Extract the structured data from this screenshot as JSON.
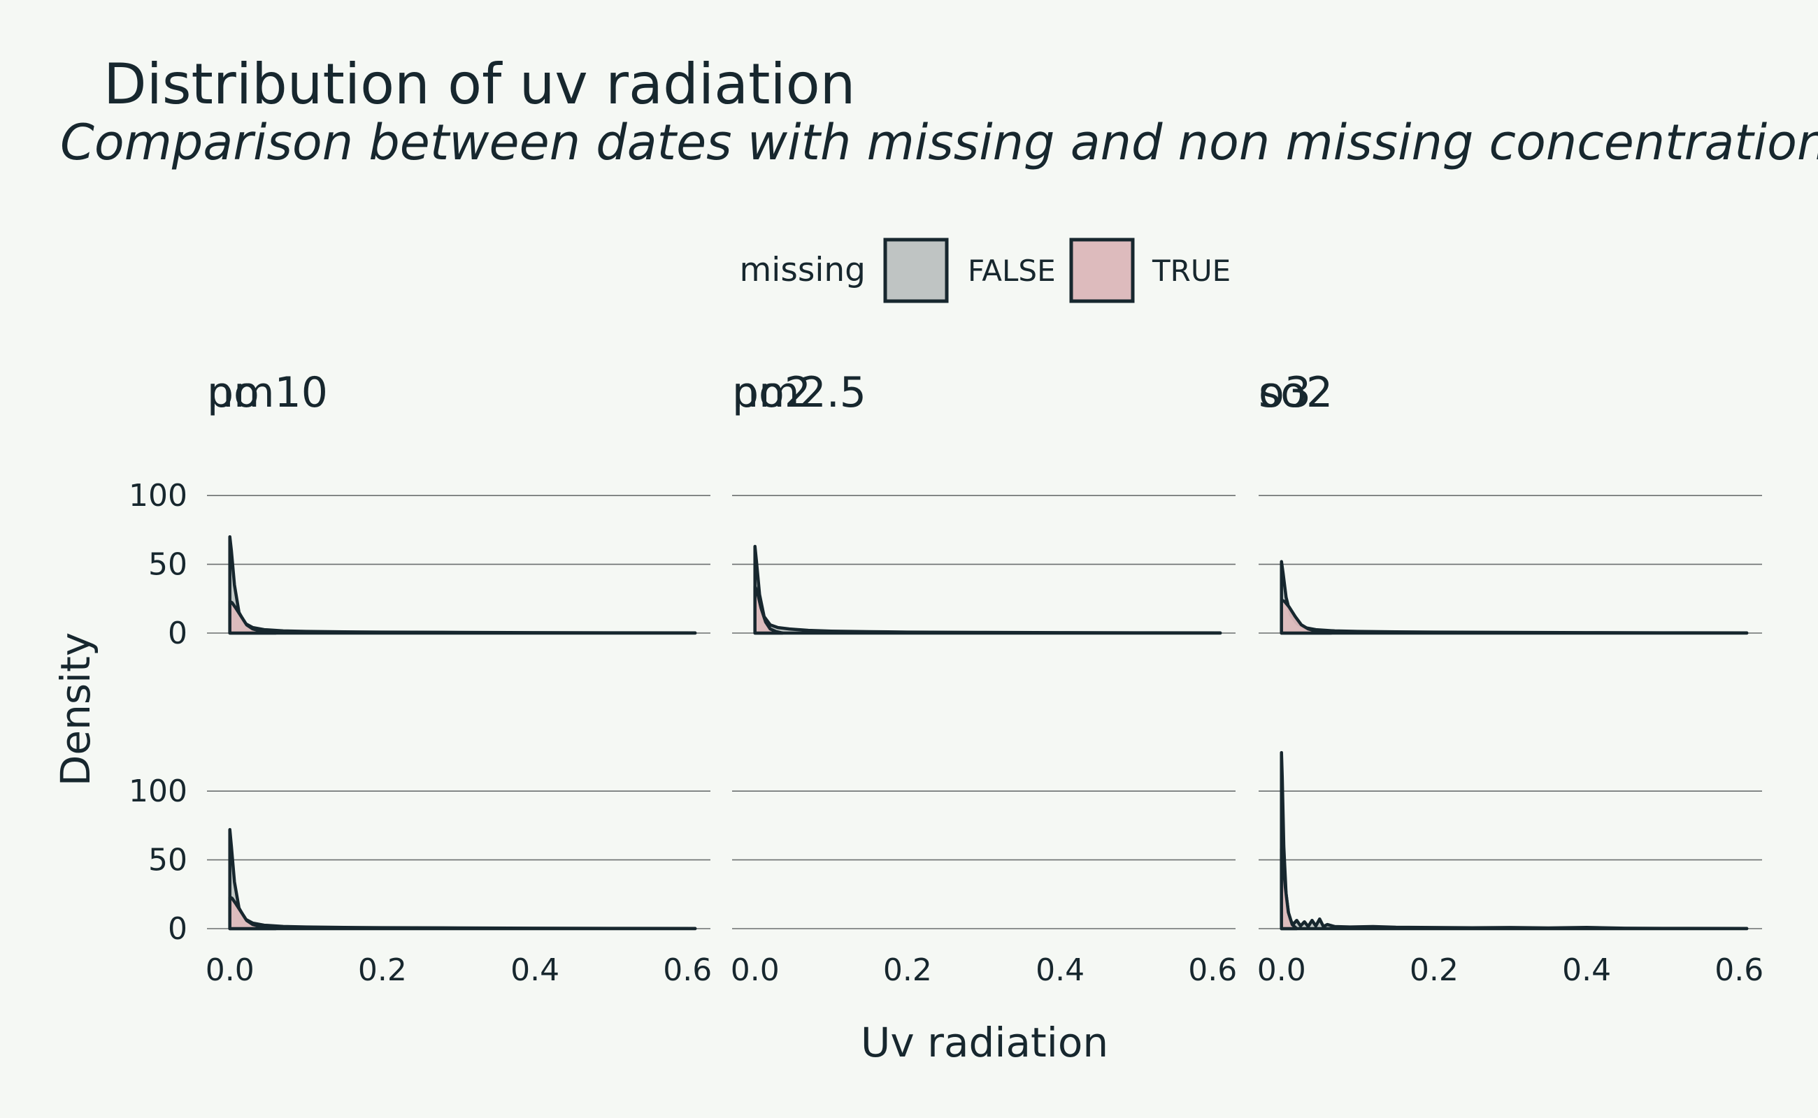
{
  "chart_data": {
    "type": "area",
    "title": "Distribution of uv radiation",
    "subtitle": "Comparison between dates with missing and non missing concentrations",
    "xlabel": "Uv radiation",
    "ylabel": "Density",
    "xlim": [
      -0.03,
      0.63
    ],
    "ylim": [
      0,
      125
    ],
    "x_ticks": [
      0.0,
      0.2,
      0.4,
      0.6
    ],
    "x_tick_labels": [
      "0.0",
      "0.2",
      "0.4",
      "0.6"
    ],
    "y_ticks": [
      0,
      50,
      100
    ],
    "y_tick_labels": [
      "0",
      "50",
      "100"
    ],
    "grid": "horizontal",
    "legend": {
      "title": "missing",
      "placement": "top",
      "entries": [
        {
          "label": "FALSE",
          "color": "#bfc4c3"
        },
        {
          "label": "TRUE",
          "color": "#ddbbbd"
        }
      ]
    },
    "line_color": "#17272e",
    "facets": [
      {
        "name": "no",
        "series": [
          {
            "name": "FALSE",
            "x": [
              0.0,
              0.002,
              0.006,
              0.012,
              0.02,
              0.03,
              0.045,
              0.07,
              0.1,
              0.15,
              0.2,
              0.3,
              0.4,
              0.5,
              0.61
            ],
            "y": [
              70,
              60,
              35,
              15,
              7,
              4,
              2.5,
              1.6,
              1.2,
              0.9,
              0.7,
              0.5,
              0.3,
              0.2,
              0.1
            ]
          },
          {
            "name": "TRUE",
            "x": [
              0.0,
              0.003,
              0.008,
              0.015,
              0.022,
              0.03,
              0.04,
              0.05,
              0.06
            ],
            "y": [
              23,
              22,
              18,
              12,
              6,
              3,
              1.5,
              0.5,
              0
            ]
          }
        ]
      },
      {
        "name": "no2",
        "series": [
          {
            "name": "FALSE",
            "x": [
              0.0,
              0.002,
              0.006,
              0.012,
              0.02,
              0.03,
              0.045,
              0.07,
              0.1,
              0.15,
              0.2,
              0.3,
              0.4,
              0.5,
              0.61
            ],
            "y": [
              63,
              52,
              28,
              12,
              6,
              4,
              3,
              2,
              1.4,
              1,
              0.7,
              0.5,
              0.3,
              0.2,
              0.1
            ]
          },
          {
            "name": "TRUE",
            "x": [
              0.0,
              0.003,
              0.008,
              0.014,
              0.02,
              0.028,
              0.036
            ],
            "y": [
              34,
              30,
              18,
              8,
              3,
              1,
              0
            ]
          }
        ]
      },
      {
        "name": "o3",
        "series": [
          {
            "name": "FALSE",
            "x": [
              0.0,
              0.002,
              0.006,
              0.012,
              0.02,
              0.03,
              0.045,
              0.07,
              0.1,
              0.15,
              0.2,
              0.3,
              0.4,
              0.5,
              0.61
            ],
            "y": [
              52,
              44,
              26,
              13,
              7,
              4,
              2.5,
              1.6,
              1.2,
              0.9,
              0.7,
              0.5,
              0.3,
              0.2,
              0.1
            ]
          },
          {
            "name": "TRUE",
            "x": [
              0.0,
              0.004,
              0.01,
              0.018,
              0.026,
              0.035,
              0.045,
              0.055,
              0.065
            ],
            "y": [
              24,
              23,
              19,
              12,
              6,
              3,
              1.5,
              0.5,
              0
            ]
          }
        ]
      },
      {
        "name": "pm10",
        "series": [
          {
            "name": "FALSE",
            "x": [
              0.0,
              0.002,
              0.006,
              0.012,
              0.02,
              0.03,
              0.045,
              0.07,
              0.1,
              0.15,
              0.2,
              0.3,
              0.4,
              0.5,
              0.61
            ],
            "y": [
              72,
              60,
              34,
              15,
              7,
              4,
              2.5,
              1.6,
              1.2,
              0.9,
              0.7,
              0.5,
              0.3,
              0.2,
              0.1
            ]
          },
          {
            "name": "TRUE",
            "x": [
              0.0,
              0.003,
              0.008,
              0.015,
              0.022,
              0.03,
              0.04,
              0.05,
              0.06
            ],
            "y": [
              23,
              22,
              18,
              12,
              6,
              3,
              1.5,
              0.5,
              0
            ]
          }
        ]
      },
      {
        "name": "pm2.5",
        "series": []
      },
      {
        "name": "so2",
        "series": [
          {
            "name": "FALSE",
            "x": [
              0.0,
              0.001,
              0.003,
              0.006,
              0.01,
              0.015,
              0.02,
              0.025,
              0.03,
              0.035,
              0.04,
              0.045,
              0.05,
              0.055,
              0.06,
              0.07,
              0.09,
              0.12,
              0.15,
              0.2,
              0.25,
              0.3,
              0.35,
              0.4,
              0.45,
              0.5,
              0.61
            ],
            "y": [
              128,
              110,
              60,
              25,
              8,
              3,
              6,
              2,
              5,
              1.5,
              6,
              2,
              7,
              1.5,
              3,
              1.5,
              1.2,
              1.5,
              1,
              0.8,
              0.6,
              0.8,
              0.5,
              0.9,
              0.3,
              0.2,
              0.1
            ]
          },
          {
            "name": "TRUE",
            "x": [
              0.0,
              0.002,
              0.005,
              0.009,
              0.014,
              0.02
            ],
            "y": [
              58,
              50,
              30,
              12,
              3,
              0
            ]
          }
        ]
      }
    ]
  }
}
